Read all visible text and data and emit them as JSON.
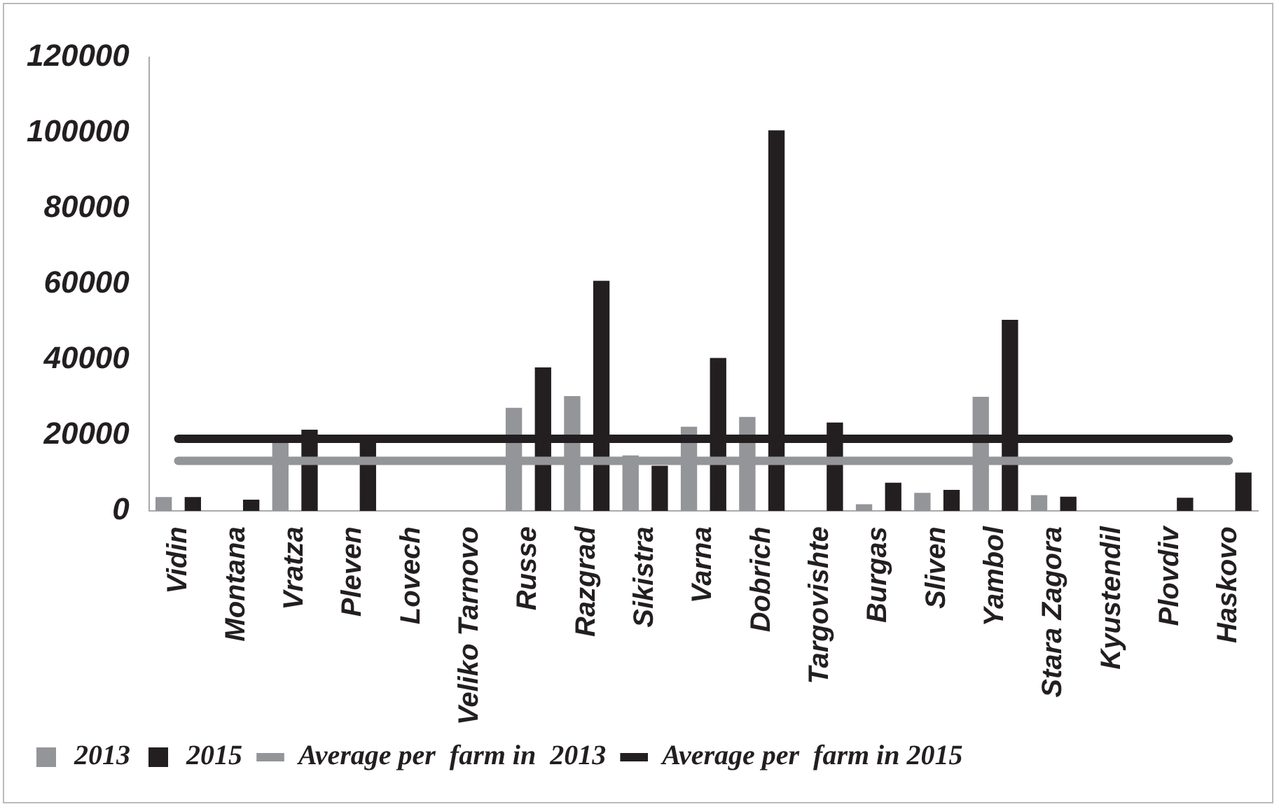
{
  "chart_data": {
    "type": "bar",
    "categories": [
      "Vidin",
      "Montana",
      "Vratza",
      "Pleven",
      "Lovech",
      "Veliko Tarnovo",
      "Russe",
      "Razgrad",
      "Sikistra",
      "Varna",
      "Dobrich",
      "Targovishte",
      "Burgas",
      "Sliven",
      "Yambol",
      "Stara Zagora",
      "Kyustendil",
      "Plovdiv",
      "Haskovo"
    ],
    "series": [
      {
        "name": "2013",
        "color": "#939598",
        "values": [
          3700,
          0,
          18000,
          0,
          0,
          0,
          27300,
          30400,
          14700,
          22300,
          24900,
          0,
          1800,
          4800,
          30200,
          4200,
          0,
          0,
          0
        ]
      },
      {
        "name": "2015",
        "color": "#231f20",
        "values": [
          3700,
          3000,
          21500,
          19000,
          0,
          0,
          38000,
          60900,
          12000,
          40500,
          100700,
          23400,
          7500,
          5600,
          50600,
          3800,
          0,
          3500,
          10200
        ]
      },
      {
        "name": "Average per  farm in  2013",
        "type": "line",
        "color": "#939598",
        "values": [
          13300,
          13300,
          13300,
          13300,
          13300,
          13300,
          13300,
          13300,
          13300,
          13300,
          13300,
          13300,
          13300,
          13300,
          13300,
          13300,
          13300,
          13300,
          13300
        ]
      },
      {
        "name": "Average per  farm in 2015",
        "type": "line",
        "color": "#231f20",
        "values": [
          19100,
          19100,
          19100,
          19100,
          19100,
          19100,
          19100,
          19100,
          19100,
          19100,
          19100,
          19100,
          19100,
          19100,
          19100,
          19100,
          19100,
          19100,
          19100
        ]
      }
    ],
    "ylim": [
      0,
      120000
    ],
    "yticks": [
      0,
      20000,
      40000,
      60000,
      80000,
      100000,
      120000
    ],
    "grid": false,
    "legend": "bottom",
    "marker": "none"
  }
}
